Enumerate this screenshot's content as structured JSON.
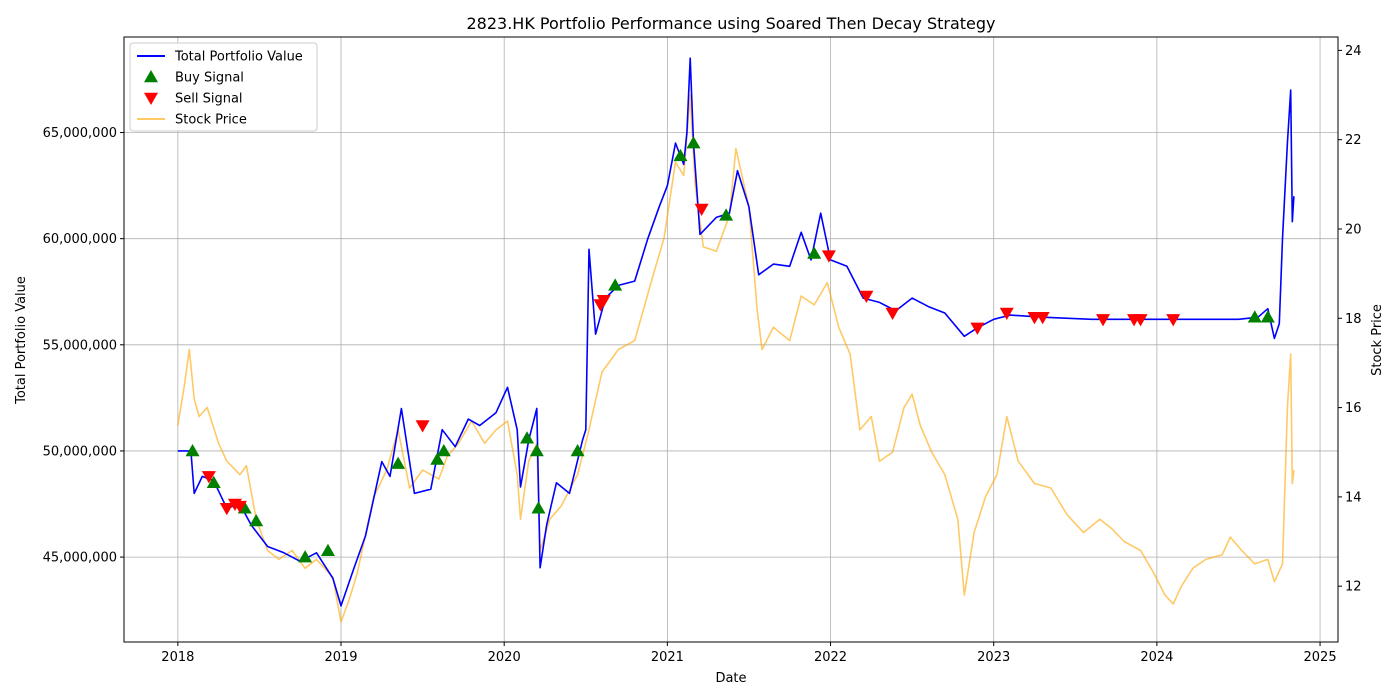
{
  "chart_data": {
    "type": "line",
    "title": "2823.HK Portfolio Performance using Soared Then Decay Strategy",
    "xlabel": "Date",
    "ylabel_left": "Total Portfolio Value",
    "ylabel_right": "Stock Price",
    "x_ticks": [
      "2018",
      "2019",
      "2020",
      "2021",
      "2022",
      "2023",
      "2024",
      "2025"
    ],
    "x_range": [
      2017.67,
      2025.11
    ],
    "y_left_ticks": [
      "45,000,000",
      "50,000,000",
      "55,000,000",
      "60,000,000",
      "65,000,000"
    ],
    "y_left_tick_values": [
      45000000,
      50000000,
      55000000,
      60000000,
      65000000
    ],
    "y_left_range": [
      41000000,
      69500000
    ],
    "y_right_ticks": [
      "12",
      "14",
      "16",
      "18",
      "20",
      "22",
      "24"
    ],
    "y_right_tick_values": [
      12,
      14,
      16,
      18,
      20,
      22,
      24
    ],
    "y_right_range": [
      10.75,
      24.3
    ],
    "grid": true,
    "legend_position": "top-left",
    "legend": [
      {
        "label": "Total Portfolio Value",
        "kind": "line",
        "color": "#0000ff"
      },
      {
        "label": "Buy Signal",
        "kind": "triangle-up",
        "color": "#008000"
      },
      {
        "label": "Sell Signal",
        "kind": "triangle-down",
        "color": "#ff0000"
      },
      {
        "label": "Stock Price",
        "kind": "line",
        "color": "#ffa500"
      }
    ],
    "series": [
      {
        "name": "Total Portfolio Value",
        "axis": "left",
        "color": "#0000ff",
        "points": [
          [
            2018.0,
            50000000
          ],
          [
            2018.08,
            50000000
          ],
          [
            2018.1,
            48000000
          ],
          [
            2018.15,
            48800000
          ],
          [
            2018.22,
            48600000
          ],
          [
            2018.3,
            47300000
          ],
          [
            2018.38,
            47500000
          ],
          [
            2018.45,
            46500000
          ],
          [
            2018.55,
            45500000
          ],
          [
            2018.65,
            45200000
          ],
          [
            2018.75,
            44800000
          ],
          [
            2018.85,
            45200000
          ],
          [
            2018.95,
            44000000
          ],
          [
            2019.0,
            42700000
          ],
          [
            2019.08,
            44500000
          ],
          [
            2019.15,
            46000000
          ],
          [
            2019.25,
            49500000
          ],
          [
            2019.3,
            48800000
          ],
          [
            2019.37,
            52000000
          ],
          [
            2019.45,
            48000000
          ],
          [
            2019.55,
            48200000
          ],
          [
            2019.62,
            51000000
          ],
          [
            2019.7,
            50200000
          ],
          [
            2019.78,
            51500000
          ],
          [
            2019.85,
            51200000
          ],
          [
            2019.95,
            51800000
          ],
          [
            2020.02,
            53000000
          ],
          [
            2020.08,
            51000000
          ],
          [
            2020.1,
            48300000
          ],
          [
            2020.15,
            50500000
          ],
          [
            2020.2,
            52000000
          ],
          [
            2020.22,
            44500000
          ],
          [
            2020.26,
            46500000
          ],
          [
            2020.32,
            48500000
          ],
          [
            2020.4,
            48000000
          ],
          [
            2020.48,
            50500000
          ],
          [
            2020.5,
            51000000
          ],
          [
            2020.52,
            59500000
          ],
          [
            2020.56,
            55500000
          ],
          [
            2020.62,
            57200000
          ],
          [
            2020.7,
            57800000
          ],
          [
            2020.8,
            58000000
          ],
          [
            2020.88,
            60000000
          ],
          [
            2020.95,
            61500000
          ],
          [
            2021.0,
            62500000
          ],
          [
            2021.05,
            64500000
          ],
          [
            2021.1,
            63500000
          ],
          [
            2021.12,
            65000000
          ],
          [
            2021.14,
            68500000
          ],
          [
            2021.16,
            64500000
          ],
          [
            2021.2,
            60200000
          ],
          [
            2021.3,
            61000000
          ],
          [
            2021.38,
            61200000
          ],
          [
            2021.43,
            63200000
          ],
          [
            2021.5,
            61500000
          ],
          [
            2021.56,
            58300000
          ],
          [
            2021.65,
            58800000
          ],
          [
            2021.75,
            58700000
          ],
          [
            2021.82,
            60300000
          ],
          [
            2021.88,
            59000000
          ],
          [
            2021.94,
            61200000
          ],
          [
            2022.0,
            59000000
          ],
          [
            2022.1,
            58700000
          ],
          [
            2022.2,
            57200000
          ],
          [
            2022.3,
            57000000
          ],
          [
            2022.4,
            56600000
          ],
          [
            2022.5,
            57200000
          ],
          [
            2022.6,
            56800000
          ],
          [
            2022.7,
            56500000
          ],
          [
            2022.82,
            55400000
          ],
          [
            2022.9,
            55800000
          ],
          [
            2023.0,
            56200000
          ],
          [
            2023.1,
            56400000
          ],
          [
            2023.3,
            56300000
          ],
          [
            2023.6,
            56200000
          ],
          [
            2023.9,
            56200000
          ],
          [
            2024.2,
            56200000
          ],
          [
            2024.5,
            56200000
          ],
          [
            2024.62,
            56300000
          ],
          [
            2024.68,
            56700000
          ],
          [
            2024.72,
            55300000
          ],
          [
            2024.75,
            56000000
          ],
          [
            2024.77,
            60000000
          ],
          [
            2024.8,
            64500000
          ],
          [
            2024.82,
            67000000
          ],
          [
            2024.83,
            60800000
          ],
          [
            2024.84,
            62000000
          ]
        ]
      },
      {
        "name": "Stock Price",
        "axis": "right",
        "color": "#ffa500",
        "points": [
          [
            2018.0,
            15.6
          ],
          [
            2018.04,
            16.5
          ],
          [
            2018.07,
            17.3
          ],
          [
            2018.1,
            16.2
          ],
          [
            2018.13,
            15.8
          ],
          [
            2018.18,
            16.0
          ],
          [
            2018.25,
            15.2
          ],
          [
            2018.3,
            14.8
          ],
          [
            2018.38,
            14.5
          ],
          [
            2018.42,
            14.7
          ],
          [
            2018.48,
            13.5
          ],
          [
            2018.55,
            12.8
          ],
          [
            2018.62,
            12.6
          ],
          [
            2018.7,
            12.8
          ],
          [
            2018.78,
            12.4
          ],
          [
            2018.85,
            12.6
          ],
          [
            2018.95,
            12.2
          ],
          [
            2019.0,
            11.2
          ],
          [
            2019.05,
            11.7
          ],
          [
            2019.1,
            12.3
          ],
          [
            2019.2,
            14.0
          ],
          [
            2019.28,
            14.6
          ],
          [
            2019.35,
            15.5
          ],
          [
            2019.42,
            14.2
          ],
          [
            2019.5,
            14.6
          ],
          [
            2019.6,
            14.4
          ],
          [
            2019.65,
            14.9
          ],
          [
            2019.72,
            15.2
          ],
          [
            2019.8,
            15.7
          ],
          [
            2019.88,
            15.2
          ],
          [
            2019.95,
            15.5
          ],
          [
            2020.02,
            15.7
          ],
          [
            2020.08,
            14.5
          ],
          [
            2020.1,
            13.5
          ],
          [
            2020.15,
            14.8
          ],
          [
            2020.2,
            15.2
          ],
          [
            2020.22,
            12.8
          ],
          [
            2020.28,
            13.5
          ],
          [
            2020.35,
            13.8
          ],
          [
            2020.45,
            14.5
          ],
          [
            2020.52,
            15.5
          ],
          [
            2020.55,
            16.0
          ],
          [
            2020.6,
            16.8
          ],
          [
            2020.7,
            17.3
          ],
          [
            2020.8,
            17.5
          ],
          [
            2020.9,
            18.8
          ],
          [
            2020.98,
            19.8
          ],
          [
            2021.05,
            21.5
          ],
          [
            2021.1,
            21.2
          ],
          [
            2021.14,
            23.0
          ],
          [
            2021.17,
            21.0
          ],
          [
            2021.22,
            19.6
          ],
          [
            2021.3,
            19.5
          ],
          [
            2021.38,
            20.3
          ],
          [
            2021.42,
            21.8
          ],
          [
            2021.5,
            20.5
          ],
          [
            2021.55,
            18.2
          ],
          [
            2021.58,
            17.3
          ],
          [
            2021.65,
            17.8
          ],
          [
            2021.75,
            17.5
          ],
          [
            2021.82,
            18.5
          ],
          [
            2021.9,
            18.3
          ],
          [
            2021.98,
            18.8
          ],
          [
            2022.05,
            17.8
          ],
          [
            2022.12,
            17.2
          ],
          [
            2022.18,
            15.5
          ],
          [
            2022.25,
            15.8
          ],
          [
            2022.3,
            14.8
          ],
          [
            2022.38,
            15.0
          ],
          [
            2022.45,
            16.0
          ],
          [
            2022.5,
            16.3
          ],
          [
            2022.55,
            15.6
          ],
          [
            2022.62,
            15.0
          ],
          [
            2022.7,
            14.5
          ],
          [
            2022.78,
            13.5
          ],
          [
            2022.82,
            11.8
          ],
          [
            2022.88,
            13.2
          ],
          [
            2022.95,
            14.0
          ],
          [
            2023.02,
            14.5
          ],
          [
            2023.08,
            15.8
          ],
          [
            2023.15,
            14.8
          ],
          [
            2023.25,
            14.3
          ],
          [
            2023.35,
            14.2
          ],
          [
            2023.45,
            13.6
          ],
          [
            2023.55,
            13.2
          ],
          [
            2023.65,
            13.5
          ],
          [
            2023.72,
            13.3
          ],
          [
            2023.8,
            13.0
          ],
          [
            2023.9,
            12.8
          ],
          [
            2023.98,
            12.3
          ],
          [
            2024.05,
            11.8
          ],
          [
            2024.1,
            11.6
          ],
          [
            2024.15,
            12.0
          ],
          [
            2024.22,
            12.4
          ],
          [
            2024.3,
            12.6
          ],
          [
            2024.4,
            12.7
          ],
          [
            2024.45,
            13.1
          ],
          [
            2024.52,
            12.8
          ],
          [
            2024.6,
            12.5
          ],
          [
            2024.68,
            12.6
          ],
          [
            2024.72,
            12.1
          ],
          [
            2024.77,
            12.5
          ],
          [
            2024.8,
            16.0
          ],
          [
            2024.82,
            17.2
          ],
          [
            2024.83,
            14.3
          ],
          [
            2024.84,
            14.6
          ]
        ]
      }
    ],
    "buy_signals": [
      [
        2018.09,
        50000000
      ],
      [
        2018.22,
        48500000
      ],
      [
        2018.41,
        47300000
      ],
      [
        2018.48,
        46700000
      ],
      [
        2018.78,
        45000000
      ],
      [
        2018.92,
        45300000
      ],
      [
        2019.35,
        49400000
      ],
      [
        2019.59,
        49600000
      ],
      [
        2019.63,
        50000000
      ],
      [
        2020.14,
        50600000
      ],
      [
        2020.2,
        50000000
      ],
      [
        2020.21,
        47300000
      ],
      [
        2020.45,
        50000000
      ],
      [
        2020.68,
        57800000
      ],
      [
        2021.08,
        63900000
      ],
      [
        2021.16,
        64500000
      ],
      [
        2021.36,
        61100000
      ],
      [
        2021.9,
        59300000
      ],
      [
        2024.6,
        56300000
      ],
      [
        2024.68,
        56300000
      ]
    ],
    "sell_signals": [
      [
        2018.19,
        48800000
      ],
      [
        2018.3,
        47300000
      ],
      [
        2018.35,
        47500000
      ],
      [
        2018.38,
        47400000
      ],
      [
        2019.5,
        51200000
      ],
      [
        2020.59,
        56900000
      ],
      [
        2020.61,
        57100000
      ],
      [
        2021.21,
        61400000
      ],
      [
        2021.99,
        59200000
      ],
      [
        2022.22,
        57300000
      ],
      [
        2022.38,
        56500000
      ],
      [
        2022.9,
        55800000
      ],
      [
        2023.08,
        56500000
      ],
      [
        2023.25,
        56300000
      ],
      [
        2023.3,
        56300000
      ],
      [
        2023.67,
        56200000
      ],
      [
        2023.86,
        56200000
      ],
      [
        2023.9,
        56200000
      ],
      [
        2024.1,
        56200000
      ]
    ]
  }
}
